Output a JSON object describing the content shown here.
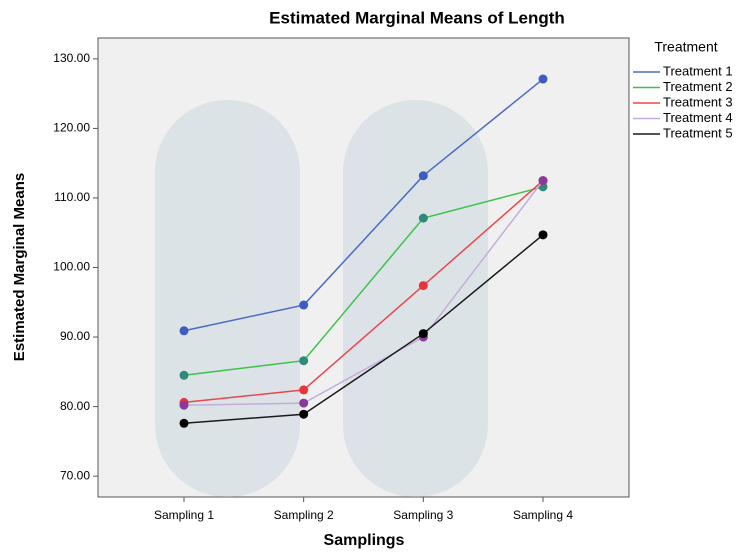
{
  "chart_data": {
    "type": "line",
    "title": "Estimated Marginal Means of Length",
    "x_label": "Samplings",
    "y_label": "Estimated Marginal Means",
    "categories": [
      "Sampling 1",
      "Sampling 2",
      "Sampling 3",
      "Sampling 4"
    ],
    "legend_title": "Treatment",
    "legend_position": "outside-right",
    "series": [
      {
        "name": "Treatment 1",
        "color": "#4a6cc5",
        "marker_color": "#3f5bbf",
        "values": [
          90.9,
          94.6,
          113.2,
          127.1
        ]
      },
      {
        "name": "Treatment 2",
        "color": "#3cc24a",
        "marker_color": "#2e8a7a",
        "values": [
          84.5,
          86.6,
          107.1,
          111.6
        ]
      },
      {
        "name": "Treatment 3",
        "color": "#e8484c",
        "marker_color": "#e8343c",
        "values": [
          80.6,
          82.4,
          97.4,
          112.5
        ]
      },
      {
        "name": "Treatment 4",
        "color": "#c3addb",
        "marker_color": "#8a3a9a",
        "values": [
          80.2,
          80.5,
          90.0,
          112.5
        ]
      },
      {
        "name": "Treatment 5",
        "color": "#1a1a1a",
        "marker_color": "#000000",
        "values": [
          77.6,
          78.9,
          90.5,
          104.7
        ]
      }
    ],
    "ylim": [
      67,
      133
    ],
    "yticks": [
      {
        "value": 70,
        "label": "70.00"
      },
      {
        "value": 80,
        "label": "80.00"
      },
      {
        "value": 90,
        "label": "90.00"
      },
      {
        "value": 100,
        "label": "100.00"
      },
      {
        "value": 110,
        "label": "110.00"
      },
      {
        "value": 120,
        "label": "120.00"
      },
      {
        "value": 130,
        "label": "130.00"
      }
    ],
    "grid": false
  }
}
